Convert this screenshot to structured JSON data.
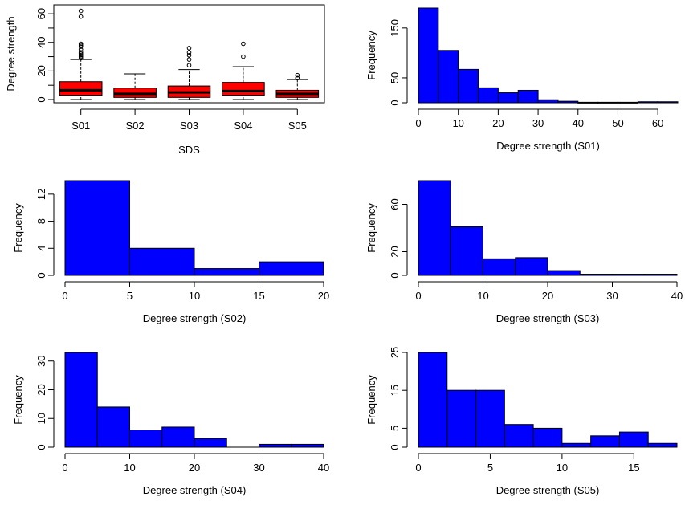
{
  "colors": {
    "box_fill": "#ff0000",
    "hist_fill": "#0000ff",
    "stroke": "#000000"
  },
  "chart_data": [
    {
      "type": "boxplot",
      "xlabel": "SDS",
      "ylabel": "Degree strength",
      "ylim": [
        0,
        64
      ],
      "yticks": [
        0,
        20,
        40,
        60
      ],
      "categories": [
        "S01",
        "S02",
        "S03",
        "S04",
        "S05"
      ],
      "boxes": [
        {
          "name": "S01",
          "min": 0,
          "q1": 3,
          "median": 6.5,
          "q3": 12.5,
          "max": 28,
          "outliers": [
            29,
            30,
            31,
            32,
            33,
            35,
            37,
            38,
            39,
            58,
            62
          ]
        },
        {
          "name": "S02",
          "min": 0,
          "q1": 1.5,
          "median": 4,
          "q3": 8,
          "max": 18,
          "outliers": []
        },
        {
          "name": "S03",
          "min": 0,
          "q1": 1.5,
          "median": 5,
          "q3": 9.5,
          "max": 21,
          "outliers": [
            24,
            28,
            31,
            33,
            36
          ]
        },
        {
          "name": "S04",
          "min": 0,
          "q1": 3,
          "median": 6,
          "q3": 12,
          "max": 23,
          "outliers": [
            30,
            39
          ]
        },
        {
          "name": "S05",
          "min": 0,
          "q1": 1.5,
          "median": 4,
          "q3": 6.5,
          "max": 14,
          "outliers": [
            15,
            17
          ]
        }
      ]
    },
    {
      "type": "histogram",
      "xlabel": "Degree strength (S01)",
      "ylabel": "Frequency",
      "xlim": [
        0,
        65
      ],
      "ylim": [
        0,
        190
      ],
      "xticks": [
        0,
        10,
        20,
        30,
        40,
        50,
        60
      ],
      "yticks": [
        0,
        50,
        150
      ],
      "bin_width": 5,
      "bins": [
        {
          "start": 0,
          "count": 190
        },
        {
          "start": 5,
          "count": 105
        },
        {
          "start": 10,
          "count": 67
        },
        {
          "start": 15,
          "count": 30
        },
        {
          "start": 20,
          "count": 20
        },
        {
          "start": 25,
          "count": 25
        },
        {
          "start": 30,
          "count": 6
        },
        {
          "start": 35,
          "count": 3
        },
        {
          "start": 40,
          "count": 1
        },
        {
          "start": 45,
          "count": 1
        },
        {
          "start": 50,
          "count": 1
        },
        {
          "start": 55,
          "count": 2
        },
        {
          "start": 60,
          "count": 2
        }
      ]
    },
    {
      "type": "histogram",
      "xlabel": "Degree strength (S02)",
      "ylabel": "Frequency",
      "xlim": [
        0,
        20
      ],
      "ylim": [
        0,
        14
      ],
      "xticks": [
        0,
        5,
        10,
        15,
        20
      ],
      "yticks": [
        0,
        4,
        8,
        12
      ],
      "bin_width": 5,
      "bins": [
        {
          "start": 0,
          "count": 14
        },
        {
          "start": 5,
          "count": 4
        },
        {
          "start": 10,
          "count": 1
        },
        {
          "start": 15,
          "count": 2
        }
      ]
    },
    {
      "type": "histogram",
      "xlabel": "Degree strength (S03)",
      "ylabel": "Frequency",
      "xlim": [
        0,
        40
      ],
      "ylim": [
        0,
        80
      ],
      "xticks": [
        0,
        10,
        20,
        30,
        40
      ],
      "yticks": [
        0,
        20,
        60
      ],
      "bin_width": 5,
      "bins": [
        {
          "start": 0,
          "count": 80
        },
        {
          "start": 5,
          "count": 41
        },
        {
          "start": 10,
          "count": 14
        },
        {
          "start": 15,
          "count": 15
        },
        {
          "start": 20,
          "count": 4
        },
        {
          "start": 25,
          "count": 1
        },
        {
          "start": 30,
          "count": 1
        },
        {
          "start": 35,
          "count": 1
        }
      ]
    },
    {
      "type": "histogram",
      "xlabel": "Degree strength (S04)",
      "ylabel": "Frequency",
      "xlim": [
        0,
        40
      ],
      "ylim": [
        0,
        33
      ],
      "xticks": [
        0,
        10,
        20,
        30,
        40
      ],
      "yticks": [
        0,
        10,
        20,
        30
      ],
      "bin_width": 5,
      "bins": [
        {
          "start": 0,
          "count": 33
        },
        {
          "start": 5,
          "count": 14
        },
        {
          "start": 10,
          "count": 6
        },
        {
          "start": 15,
          "count": 7
        },
        {
          "start": 20,
          "count": 3
        },
        {
          "start": 25,
          "count": 0
        },
        {
          "start": 30,
          "count": 1
        },
        {
          "start": 35,
          "count": 1
        }
      ]
    },
    {
      "type": "histogram",
      "xlabel": "Degree strength (S05)",
      "ylabel": "Frequency",
      "xlim": [
        0,
        18
      ],
      "ylim": [
        0,
        25
      ],
      "xticks": [
        0,
        5,
        10,
        15
      ],
      "yticks": [
        0,
        5,
        15,
        25
      ],
      "bin_width": 2,
      "bins": [
        {
          "start": 0,
          "count": 25
        },
        {
          "start": 2,
          "count": 15
        },
        {
          "start": 4,
          "count": 15
        },
        {
          "start": 6,
          "count": 6
        },
        {
          "start": 8,
          "count": 5
        },
        {
          "start": 10,
          "count": 1
        },
        {
          "start": 12,
          "count": 3
        },
        {
          "start": 14,
          "count": 4
        },
        {
          "start": 16,
          "count": 1
        }
      ]
    }
  ]
}
